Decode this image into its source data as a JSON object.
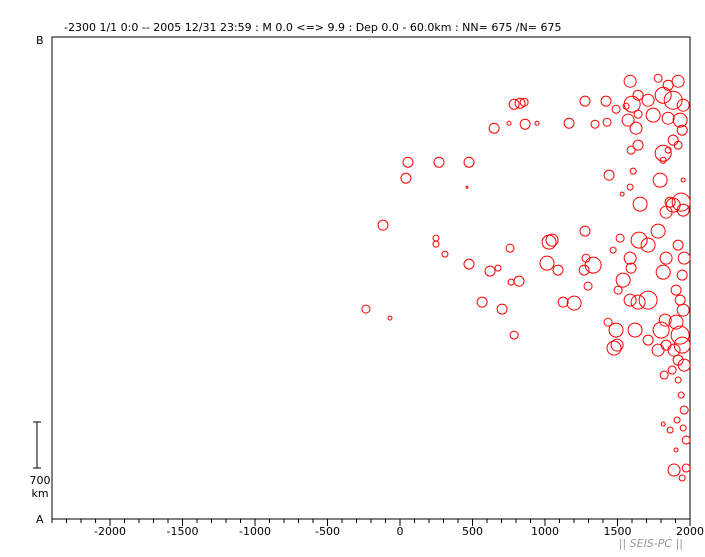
{
  "chart_data": {
    "type": "scatter",
    "title": "-2300 1/1 0:0 -- 2005 12/31 23:59  : M 0.0 <=> 9.9  : Dep 0.0 - 60.0km : NN= 675 /N= 675",
    "y_end_labels": {
      "top": "B",
      "bottom": "A"
    },
    "scale_bar": {
      "length": 700,
      "unit": "km"
    },
    "footer": "|| SEIS-PC ||",
    "color": "#ff0000",
    "xlim": [
      -2400,
      2000
    ],
    "xticks": [
      -2000,
      -1500,
      -1000,
      -500,
      0,
      500,
      1000,
      1500,
      2000
    ],
    "minor_tick_step": 100,
    "ylim": [
      0,
      7330
    ],
    "x": [
      -235,
      -69,
      -117,
      55,
      41,
      269,
      476,
      462,
      248,
      248,
      310,
      476,
      621,
      676,
      566,
      704,
      787,
      759,
      766,
      821,
      649,
      787,
      828,
      856,
      863,
      945,
      752,
      1028,
      1049,
      1014,
      1090,
      1166,
      1276,
      1125,
      1201,
      1276,
      1283,
      1270,
      1332,
      1297,
      1345,
      1421,
      1442,
      1428,
      1490,
      1532,
      1518,
      1470,
      1435,
      1490,
      1476,
      1504,
      1539,
      1587,
      1601,
      1573,
      1628,
      1642,
      1594,
      1794,
      1815,
      1608,
      1587,
      1656,
      1649,
      1711,
      1587,
      1594,
      1587,
      1642,
      1711,
      1621,
      1711,
      1497,
      1801,
      1829,
      1815,
      1835,
      1780,
      1835,
      1863,
      1884,
      1939,
      1953,
      1918,
      1960,
      1946,
      1904,
      1932,
      1953,
      1904,
      1932,
      1946,
      1890,
      1835,
      1780,
      1918,
      1960,
      1877,
      1822,
      1918,
      1939,
      1960,
      1911,
      1953,
      1863,
      1815,
      1974,
      1904,
      1974,
      1890,
      1946,
      1918,
      1849,
      1780,
      1815,
      1884,
      1953,
      1711,
      1642,
      1746,
      1849,
      1932,
      1946,
      1884,
      1918,
      1849,
      1815,
      1953,
      1642,
      1559
    ],
    "y": [
      3192,
      3055,
      4469,
      5426,
      5183,
      5426,
      5426,
      5046,
      4271,
      4180,
      4028,
      3876,
      3770,
      3815,
      3298,
      3192,
      2797,
      4119,
      3602,
      3617,
      5943,
      6308,
      6323,
      6338,
      6004,
      6019,
      6019,
      4210,
      4241,
      3891,
      3785,
      6019,
      6354,
      3298,
      3283,
      4378,
      3967,
      3785,
      3861,
      3541,
      6004,
      6354,
      5229,
      6034,
      6232,
      4940,
      4271,
      4088,
      2994,
      2873,
      2599,
      3481,
      3633,
      6658,
      6308,
      6065,
      5943,
      5685,
      5609,
      5153,
      5563,
      5290,
      5047,
      4788,
      4241,
      4165,
      3967,
      3815,
      3329,
      3298,
      3329,
      2873,
      2721,
      2645,
      2873,
      3025,
      3754,
      3967,
      4378,
      4666,
      4818,
      4773,
      4818,
      4697,
      4165,
      3967,
      3709,
      3481,
      3329,
      3177,
      2994,
      2797,
      2645,
      2569,
      2645,
      2569,
      2417,
      2340,
      2265,
      2189,
      2113,
      1885,
      1657,
      1505,
      1383,
      1353,
      1444,
      1201,
      1049,
      775,
      745,
      623,
      6658,
      6597,
      6703,
      6445,
      6369,
      6293,
      6369,
      6445,
      6141,
      6095,
      6065,
      5913,
      5761,
      5685,
      5609,
      5456,
      5153,
      6156,
      6278
    ],
    "sizes": [
      4,
      2,
      5,
      5,
      5,
      5,
      5,
      1,
      3,
      3,
      3,
      5,
      5,
      3,
      5,
      5,
      4,
      4,
      3,
      5,
      5,
      5,
      5,
      4,
      5,
      2,
      2,
      7,
      6,
      7,
      5,
      5,
      5,
      5,
      7,
      5,
      4,
      5,
      8,
      4,
      4,
      5,
      5,
      4,
      4,
      2,
      4,
      3,
      4,
      7,
      7,
      4,
      7,
      6,
      8,
      6,
      6,
      5,
      4,
      7,
      8,
      3,
      3,
      7,
      8,
      7,
      6,
      5,
      6,
      7,
      9,
      7,
      5,
      6,
      8,
      6,
      7,
      6,
      7,
      6,
      5,
      7,
      9,
      6,
      5,
      6,
      5,
      5,
      5,
      6,
      7,
      9,
      8,
      6,
      5,
      6,
      5,
      6,
      4,
      4,
      3,
      3,
      4,
      3,
      3,
      3,
      2,
      4,
      2,
      4,
      6,
      3,
      6,
      5,
      4,
      8,
      9,
      6,
      6,
      5,
      7,
      6,
      7,
      5,
      5,
      4,
      3,
      3,
      2,
      4,
      3
    ]
  }
}
